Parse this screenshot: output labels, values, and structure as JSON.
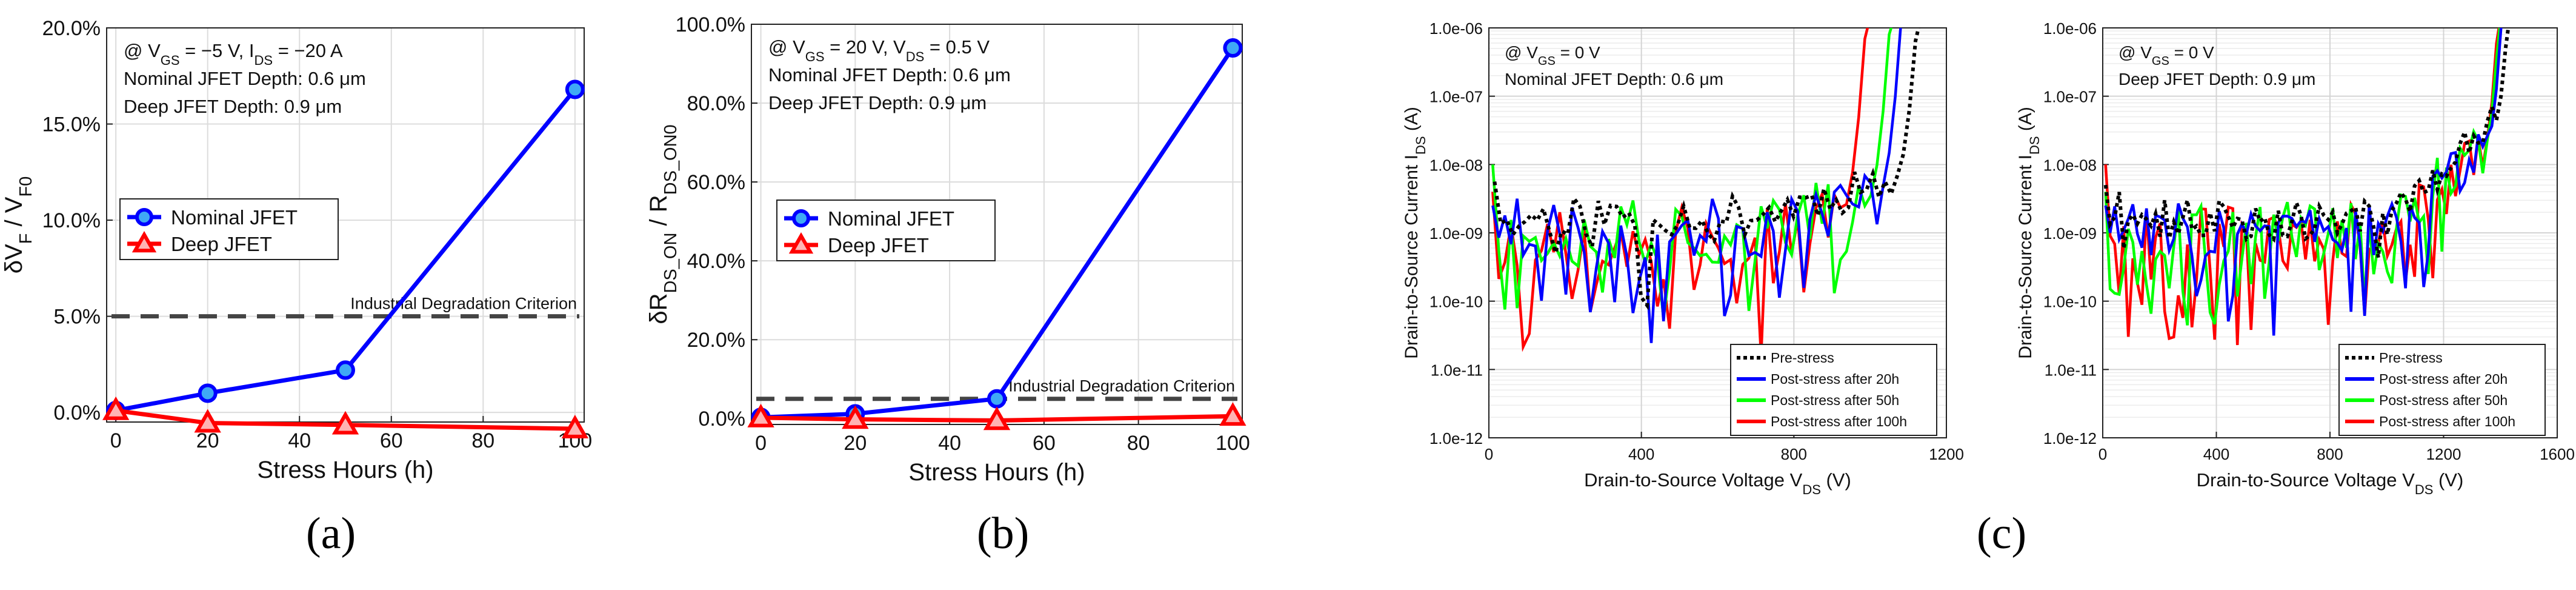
{
  "chart_data": [
    {
      "id": "a",
      "type": "line",
      "panel_label": "(a)",
      "ylim": [
        -0.5,
        20
      ],
      "xlim": [
        -2,
        102
      ],
      "yticks": [
        "0.0%",
        "5.0%",
        "10.0%",
        "15.0%",
        "20.0%"
      ],
      "ytick_values": [
        0,
        5,
        10,
        15,
        20
      ],
      "xticks": [
        "0",
        "20",
        "40",
        "60",
        "80",
        "100"
      ],
      "xtick_values": [
        0,
        20,
        40,
        60,
        80,
        100
      ],
      "xlabel": "Stress Hours (h)",
      "ylabel": "δV_F / V_F0",
      "annotation_lines": [
        "@ V_GS = −5 V, I_DS = −20 A",
        "Nominal JFET Depth: 0.6 μm",
        "Deep JFET Depth: 0.9 μm"
      ],
      "criterion": {
        "value": 5.0,
        "label": "Industrial Degradation Criterion"
      },
      "legend": [
        "Nominal JFET",
        "Deep JFET"
      ],
      "series": [
        {
          "name": "Nominal JFET",
          "color": "#0000ff",
          "marker": "circle",
          "x": [
            0,
            20,
            50,
            100
          ],
          "y": [
            0.1,
            1.0,
            2.2,
            16.8
          ]
        },
        {
          "name": "Deep JFET",
          "color": "#ff0000",
          "marker": "triangle",
          "x": [
            0,
            20,
            50,
            100
          ],
          "y": [
            0.1,
            -0.55,
            -0.65,
            -0.85
          ]
        }
      ]
    },
    {
      "id": "b",
      "type": "line",
      "panel_label": "(b)",
      "ylim": [
        -1.5,
        100
      ],
      "xlim": [
        -2,
        102
      ],
      "yticks": [
        "0.0%",
        "20.0%",
        "40.0%",
        "60.0%",
        "80.0%",
        "100.0%"
      ],
      "ytick_values": [
        0,
        20,
        40,
        60,
        80,
        100
      ],
      "xticks": [
        "0",
        "20",
        "40",
        "60",
        "80",
        "100"
      ],
      "xtick_values": [
        0,
        20,
        40,
        60,
        80,
        100
      ],
      "xlabel": "Stress Hours (h)",
      "ylabel": "δR_DS_ON / R_DS_ON0",
      "annotation_lines": [
        "@ V_GS = 20 V, V_DS = 0.5 V",
        "Nominal JFET Depth: 0.6 μm",
        "Deep JFET Depth: 0.9 μm"
      ],
      "criterion": {
        "value": 5.0,
        "label": "Industrial Degradation Criterion"
      },
      "legend": [
        "Nominal JFET",
        "Deep JFET"
      ],
      "series": [
        {
          "name": "Nominal JFET",
          "color": "#0000ff",
          "marker": "circle",
          "x": [
            0,
            20,
            50,
            100
          ],
          "y": [
            0.3,
            1.2,
            5.0,
            94.0
          ]
        },
        {
          "name": "Deep JFET",
          "color": "#ff0000",
          "marker": "triangle",
          "x": [
            0,
            20,
            50,
            100
          ],
          "y": [
            0.2,
            -0.2,
            -0.5,
            0.6
          ]
        }
      ]
    },
    {
      "id": "c1",
      "type": "line",
      "yscale": "log",
      "ylim_exp": [
        -12,
        -6
      ],
      "xlim": [
        0,
        1200
      ],
      "yticks": [
        "1.0e-12",
        "1.0e-11",
        "1.0e-10",
        "1.0e-09",
        "1.0e-08",
        "1.0e-07",
        "1.0e-06"
      ],
      "xticks": [
        "0",
        "400",
        "800",
        "1200"
      ],
      "xtick_values": [
        0,
        400,
        800,
        1200
      ],
      "xlabel": "Drain-to-Source Voltage V_DS (V)",
      "ylabel": "Drain-to-Source Current I_DS (A)",
      "annotation_lines": [
        "@ V_GS = 0 V",
        "Nominal JFET Depth: 0.6 μm"
      ],
      "legend": [
        "Pre-stress",
        "Post-stress after 20h",
        "Post-stress after 50h",
        "Post-stress after 100h"
      ],
      "series": [
        {
          "name": "Pre-stress",
          "color": "#000000",
          "style": "dotted",
          "seed": 11,
          "base": -8.75,
          "noise": 0.3,
          "dips": 0.05,
          "vbreak": 1095,
          "x0": 15,
          "y0": -8.25
        },
        {
          "name": "Post-stress after 20h",
          "color": "#0000ff",
          "style": "solid",
          "seed": 23,
          "base": -8.95,
          "noise": 0.45,
          "dips": 0.22,
          "vbreak": 1050,
          "x0": 10,
          "y0": -8.6
        },
        {
          "name": "Post-stress after 50h",
          "color": "#00ff00",
          "style": "solid",
          "seed": 37,
          "base": -9.0,
          "noise": 0.5,
          "dips": 0.25,
          "vbreak": 1020,
          "x0": 10,
          "y0": -8.0
        },
        {
          "name": "Post-stress after 100h",
          "color": "#ff0000",
          "style": "solid",
          "seed": 53,
          "base": -9.05,
          "noise": 0.5,
          "dips": 0.28,
          "vbreak": 955,
          "x0": 10,
          "y0": -8.4
        }
      ]
    },
    {
      "id": "c2",
      "type": "line",
      "panel_label": "(c)",
      "yscale": "log",
      "ylim_exp": [
        -12,
        -6
      ],
      "xlim": [
        0,
        1600
      ],
      "yticks": [
        "1.0e-12",
        "1.0e-11",
        "1.0e-10",
        "1.0e-09",
        "1.0e-08",
        "1.0e-07",
        "1.0e-06"
      ],
      "xticks": [
        "0",
        "400",
        "800",
        "1200",
        "1600"
      ],
      "xtick_values": [
        0,
        400,
        800,
        1200,
        1600
      ],
      "xlabel": "Drain-to-Source Voltage V_DS (V)",
      "ylabel": "Drain-to-Source Current I_DS (A)",
      "annotation_lines": [
        "@ V_GS = 0 V",
        "Deep JFET Depth: 0.9 μm"
      ],
      "legend": [
        "Pre-stress",
        "Post-stress after 20h",
        "Post-stress after 50h",
        "Post-stress after 100h"
      ],
      "series": [
        {
          "name": "Pre-stress",
          "color": "#000000",
          "style": "dotted",
          "seed": 71,
          "base": -8.8,
          "noise": 0.3,
          "dips": 0.05,
          "vbreak": 1410,
          "x0": 10,
          "y0": -8.3,
          "soft": true
        },
        {
          "name": "Post-stress after 20h",
          "color": "#0000ff",
          "style": "solid",
          "seed": 83,
          "base": -8.95,
          "noise": 0.4,
          "dips": 0.18,
          "vbreak": 1385,
          "x0": 10,
          "y0": -8.6,
          "soft": true
        },
        {
          "name": "Post-stress after 50h",
          "color": "#00ff00",
          "style": "solid",
          "seed": 97,
          "base": -9.0,
          "noise": 0.45,
          "dips": 0.22,
          "vbreak": 1375,
          "x0": 10,
          "y0": -8.4,
          "soft": true
        },
        {
          "name": "Post-stress after 100h",
          "color": "#ff0000",
          "style": "solid",
          "seed": 101,
          "base": -9.05,
          "noise": 0.5,
          "dips": 0.28,
          "vbreak": 1370,
          "x0": 10,
          "y0": -8.0,
          "soft": true
        }
      ]
    }
  ],
  "panel_letters": {
    "a": "(a)",
    "b": "(b)",
    "c": "(c)"
  }
}
